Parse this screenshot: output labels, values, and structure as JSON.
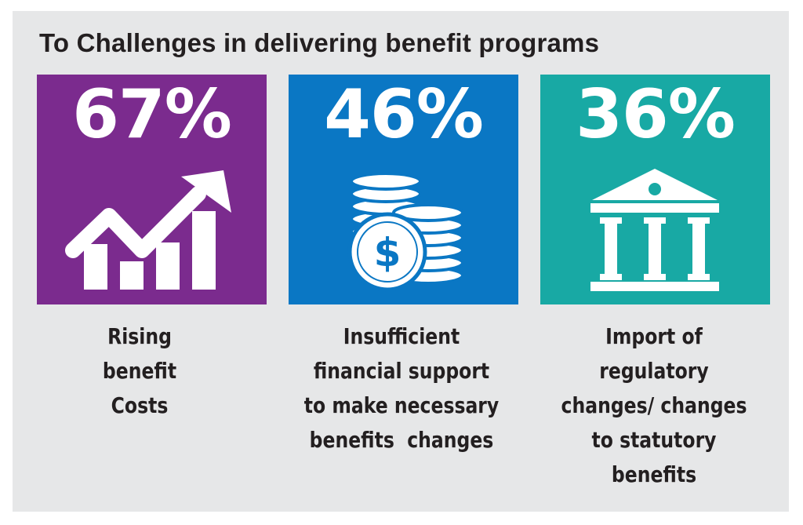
{
  "title": "To Challenges in delivering benefit programs",
  "colors": {
    "background": "#e6e7e8",
    "purple": "#7b2b8e",
    "blue": "#0a77c4",
    "teal": "#18a9a4"
  },
  "stats": [
    {
      "value": "67%",
      "icon": "rising-chart-icon",
      "color": "#7b2b8e",
      "caption_lines": [
        "Rising",
        "benefit",
        "Costs"
      ]
    },
    {
      "value": "46%",
      "icon": "coin-stacks-dollar-icon",
      "color": "#0a77c4",
      "caption_lines": [
        "Insufficient",
        "financial support",
        "to make necessary",
        "benefits  changes"
      ]
    },
    {
      "value": "36%",
      "icon": "government-building-icon",
      "color": "#18a9a4",
      "caption_lines": [
        "Import of",
        "regulatory",
        "changes/ changes",
        "to statutory",
        "benefits"
      ]
    }
  ]
}
